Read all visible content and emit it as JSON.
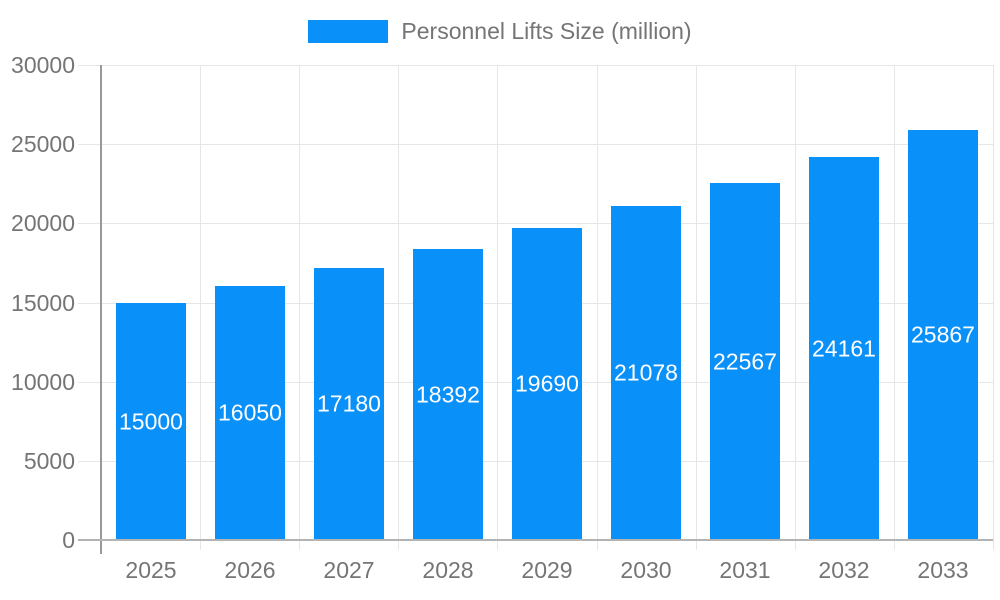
{
  "legend": {
    "label": "Personnel Lifts Size (million)"
  },
  "chart_data": {
    "type": "bar",
    "title": "Personnel Lifts Size (million)",
    "categories": [
      "2025",
      "2026",
      "2027",
      "2028",
      "2029",
      "2030",
      "2031",
      "2032",
      "2033"
    ],
    "values": [
      15000,
      16050,
      17180,
      18392,
      19690,
      21078,
      22567,
      24161,
      25867
    ],
    "xlabel": "",
    "ylabel": "",
    "ylim": [
      0,
      30000
    ],
    "yticks": [
      0,
      5000,
      10000,
      15000,
      20000,
      25000,
      30000
    ],
    "grid": true,
    "legend_position": "top-center",
    "bar_color": "#0a90f9",
    "value_label_color": "#ffffff",
    "axis_text_color": "#757575",
    "gridline_color": "#e6e6e6",
    "yaxis_line_color": "#999999",
    "xaxis_line_color": "#b3b3b3"
  }
}
